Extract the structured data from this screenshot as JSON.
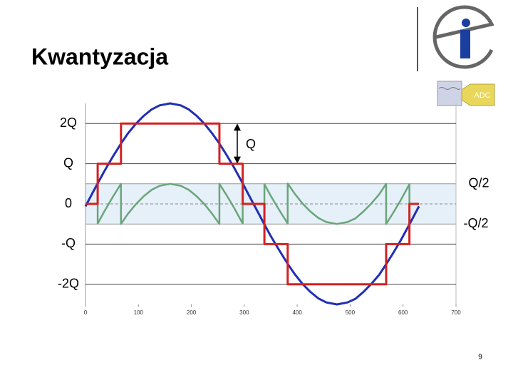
{
  "title": "Kwantyzacja",
  "page_number": "9",
  "icon_label": "ADC",
  "chart_data": {
    "type": "line",
    "x": [
      0,
      12,
      23,
      23,
      35,
      50,
      67,
      67,
      80,
      95,
      110,
      125,
      140,
      160,
      180,
      195,
      210,
      225,
      240,
      253,
      253,
      265,
      280,
      297,
      297,
      305,
      317,
      328,
      338,
      338,
      350,
      365,
      382,
      382,
      395,
      410,
      425,
      440,
      455,
      475,
      495,
      510,
      525,
      540,
      555,
      568,
      568,
      580,
      595,
      612,
      612,
      622,
      630
    ],
    "series": [
      {
        "color": "#1f2fb5",
        "values": [
          -0.06,
          0.24,
          0.51,
          0.51,
          0.8,
          1.14,
          1.5,
          1.5,
          1.75,
          1.99,
          2.19,
          2.35,
          2.45,
          2.5,
          2.45,
          2.35,
          2.19,
          1.99,
          1.74,
          1.5,
          1.5,
          1.25,
          0.92,
          0.51,
          0.51,
          0.31,
          0.01,
          -0.26,
          -0.51,
          -0.51,
          -0.8,
          -1.13,
          -1.49,
          -1.49,
          -1.74,
          -1.99,
          -2.19,
          -2.35,
          -2.45,
          -2.5,
          -2.45,
          -2.36,
          -2.19,
          -1.99,
          -1.76,
          -1.5,
          -1.5,
          -1.25,
          -0.92,
          -0.51,
          -0.51,
          -0.26,
          -0.06
        ]
      },
      {
        "color": "#d42020",
        "values": [
          0,
          0,
          0,
          1,
          1,
          1,
          1,
          2,
          2,
          2,
          2,
          2,
          2,
          2,
          2,
          2,
          2,
          2,
          2,
          2,
          1,
          1,
          1,
          1,
          0,
          0,
          0,
          0,
          0,
          -1,
          -1,
          -1,
          -1,
          -2,
          -2,
          -2,
          -2,
          -2,
          -2,
          -2,
          -2,
          -2,
          -2,
          -2,
          -2,
          -2,
          -1,
          -1,
          -1,
          -1,
          0,
          0,
          0
        ]
      },
      {
        "color": "#6aa57a",
        "values": [
          -0.06,
          0.24,
          0.51,
          -0.49,
          -0.2,
          0.14,
          0.5,
          -0.5,
          -0.25,
          -0.01,
          0.19,
          0.35,
          0.45,
          0.5,
          0.45,
          0.35,
          0.19,
          -0.01,
          -0.26,
          -0.5,
          0.5,
          0.25,
          -0.08,
          -0.49,
          0.51,
          0.31,
          0.01,
          -0.26,
          -0.51,
          0.49,
          0.2,
          -0.13,
          -0.49,
          0.51,
          0.26,
          0.01,
          -0.19,
          -0.35,
          -0.45,
          -0.5,
          -0.45,
          -0.36,
          -0.19,
          0.01,
          0.24,
          0.5,
          -0.5,
          -0.25,
          0.08,
          0.49,
          -0.51,
          -0.26,
          -0.06
        ]
      }
    ],
    "xlim": [
      0,
      700
    ],
    "xticks": [
      0,
      100,
      200,
      300,
      400,
      500,
      600,
      700
    ],
    "ylim": [
      -2.5,
      2.5
    ],
    "yticks": [
      {
        "value": 2,
        "label": "2Q"
      },
      {
        "value": 1,
        "label": "Q"
      },
      0,
      {
        "value": -1,
        "label": "-Q"
      },
      {
        "value": -2,
        "label": "-2Q"
      }
    ],
    "band": [
      -0.5,
      0.5
    ],
    "band_labels": [
      "-Q/2",
      "Q/2"
    ],
    "step_annotation": "Q",
    "grid": true
  }
}
